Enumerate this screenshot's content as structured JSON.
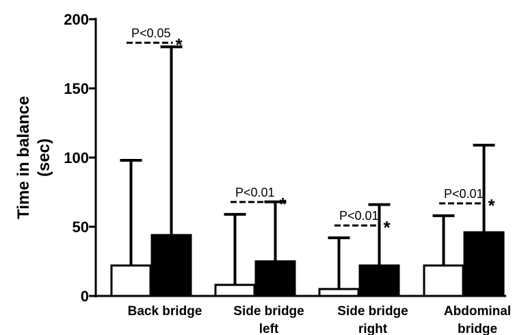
{
  "chart_data": {
    "type": "bar",
    "ylabel_lines": [
      "Time in balance",
      "(sec)"
    ],
    "ylim": [
      0,
      200
    ],
    "yticks": [
      0,
      50,
      100,
      150,
      200
    ],
    "grid": false,
    "categories": [
      {
        "lines": [
          "Back bridge"
        ]
      },
      {
        "lines": [
          "Side bridge",
          "left"
        ]
      },
      {
        "lines": [
          "Side bridge",
          "right"
        ]
      },
      {
        "lines": [
          "Abdominal",
          "bridge"
        ]
      }
    ],
    "series": [
      {
        "fill": "#ffffff",
        "values": [
          22,
          8,
          5,
          22
        ],
        "error_upper": [
          98,
          59,
          42,
          58
        ]
      },
      {
        "fill": "#000000",
        "values": [
          44,
          25,
          22,
          46
        ],
        "error_upper": [
          180,
          68,
          66,
          109
        ]
      }
    ],
    "annotations": [
      {
        "category": 0,
        "text": "P<0.05",
        "marker": "*"
      },
      {
        "category": 1,
        "text": "P<0.01",
        "marker": "*"
      },
      {
        "category": 2,
        "text": "P<0.01",
        "marker": "*"
      },
      {
        "category": 3,
        "text": "P<0.01",
        "marker": "*"
      }
    ],
    "colors": {
      "axis": "#000000",
      "outline": "#000000"
    }
  }
}
